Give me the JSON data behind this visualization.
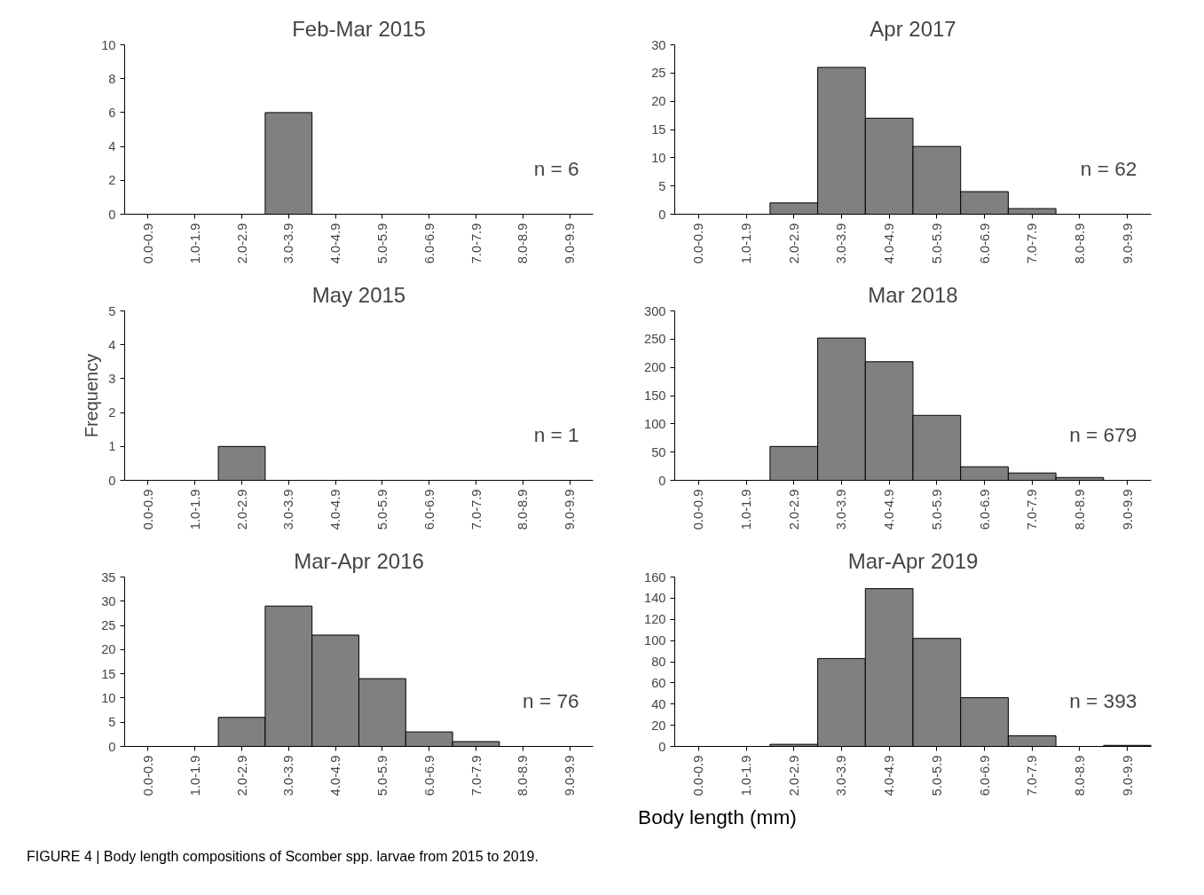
{
  "chart_data": [
    {
      "type": "bar",
      "title": "Feb-Mar 2015",
      "categories": [
        "0.0-0.9",
        "1.0-1.9",
        "2.0-2.9",
        "3.0-3.9",
        "4.0-4.9",
        "5.0-5.9",
        "6.0-6.9",
        "7.0-7.9",
        "8.0-8.9",
        "9.0-9.9"
      ],
      "values": [
        0,
        0,
        0,
        6,
        0,
        0,
        0,
        0,
        0,
        0
      ],
      "color": "#808080",
      "ylim": [
        0,
        10
      ],
      "yticks": [
        0,
        2,
        4,
        6,
        8,
        10
      ],
      "grid": false,
      "annotations": [
        "n = 6"
      ]
    },
    {
      "type": "bar",
      "title": "Apr 2017",
      "categories": [
        "0.0-0.9",
        "1.0-1.9",
        "2.0-2.9",
        "3.0-3.9",
        "4.0-4.9",
        "5.0-5.9",
        "6.0-6.9",
        "7.0-7.9",
        "8.0-8.9",
        "9.0-9.9"
      ],
      "values": [
        0,
        0,
        2,
        26,
        17,
        12,
        4,
        1,
        0,
        0
      ],
      "color": "#808080",
      "ylim": [
        0,
        30
      ],
      "yticks": [
        0,
        5,
        10,
        15,
        20,
        25,
        30
      ],
      "grid": false,
      "annotations": [
        "n = 62"
      ]
    },
    {
      "type": "bar",
      "title": "May 2015",
      "ylabel": "Frequency",
      "categories": [
        "0.0-0.9",
        "1.0-1.9",
        "2.0-2.9",
        "3.0-3.9",
        "4.0-4.9",
        "5.0-5.9",
        "6.0-6.9",
        "7.0-7.9",
        "8.0-8.9",
        "9.0-9.9"
      ],
      "values": [
        0,
        0,
        1,
        0,
        0,
        0,
        0,
        0,
        0,
        0
      ],
      "color": "#808080",
      "ylim": [
        0,
        5
      ],
      "yticks": [
        0,
        1,
        2,
        3,
        4,
        5
      ],
      "grid": false,
      "annotations": [
        "n = 1"
      ]
    },
    {
      "type": "bar",
      "title": "Mar 2018",
      "categories": [
        "0.0-0.9",
        "1.0-1.9",
        "2.0-2.9",
        "3.0-3.9",
        "4.0-4.9",
        "5.0-5.9",
        "6.0-6.9",
        "7.0-7.9",
        "8.0-8.9",
        "9.0-9.9"
      ],
      "values": [
        0,
        0,
        60,
        252,
        210,
        115,
        24,
        13,
        5,
        0
      ],
      "color": "#808080",
      "ylim": [
        0,
        300
      ],
      "yticks": [
        0,
        50,
        100,
        150,
        200,
        250,
        300
      ],
      "grid": false,
      "annotations": [
        "n = 679"
      ]
    },
    {
      "type": "bar",
      "title": "Mar-Apr 2016",
      "xlabel": "Body length (mm)",
      "categories": [
        "0.0-0.9",
        "1.0-1.9",
        "2.0-2.9",
        "3.0-3.9",
        "4.0-4.9",
        "5.0-5.9",
        "6.0-6.9",
        "7.0-7.9",
        "8.0-8.9",
        "9.0-9.9"
      ],
      "values": [
        0,
        0,
        6,
        29,
        23,
        14,
        3,
        1,
        0,
        0
      ],
      "color": "#808080",
      "ylim": [
        0,
        35
      ],
      "yticks": [
        0,
        5,
        10,
        15,
        20,
        25,
        30,
        35
      ],
      "grid": false,
      "annotations": [
        "n = 76"
      ]
    },
    {
      "type": "bar",
      "title": "Mar-Apr 2019",
      "categories": [
        "0.0-0.9",
        "1.0-1.9",
        "2.0-2.9",
        "3.0-3.9",
        "4.0-4.9",
        "5.0-5.9",
        "6.0-6.9",
        "7.0-7.9",
        "8.0-8.9",
        "9.0-9.9"
      ],
      "values": [
        0,
        0,
        2,
        83,
        149,
        102,
        46,
        10,
        0,
        1
      ],
      "color": "#808080",
      "ylim": [
        0,
        160
      ],
      "yticks": [
        0,
        20,
        40,
        60,
        80,
        100,
        120,
        140,
        160
      ],
      "grid": false,
      "annotations": [
        "n = 393",
        "FIGURE 4 | Body length compositions of Scomber spp. larvae from 2015 to 2019."
      ]
    }
  ]
}
